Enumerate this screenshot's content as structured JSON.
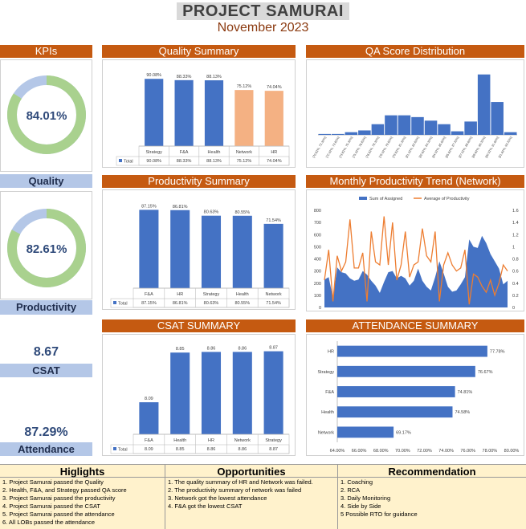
{
  "header": {
    "title": "PROJECT SAMURAI",
    "subtitle": "November 2023"
  },
  "kpis": {
    "section_title": "KPIs",
    "quality": {
      "value": "84.01%",
      "label": "Quality",
      "fraction": 0.8401
    },
    "productivity": {
      "value": "82.61%",
      "label": "Productivity",
      "fraction": 0.8261
    },
    "csat": {
      "value": "8.67",
      "label": "CSAT"
    },
    "attendance": {
      "value": "87.29%",
      "label": "Attendance"
    }
  },
  "colors": {
    "accent": "#c55a11",
    "bar_blue": "#4472c4",
    "bar_peach": "#f4b183",
    "donut_green": "#a9d18e",
    "donut_blue": "#b4c7e7",
    "line_orange": "#ed7d31"
  },
  "chart_data": [
    {
      "id": "quality",
      "type": "bar",
      "title": "Quality Summary",
      "categories": [
        "Strategy",
        "F&A",
        "Health",
        "Network",
        "HR"
      ],
      "series": [
        {
          "name": "Total",
          "values": [
            90.08,
            88.33,
            88.13,
            75.12,
            74.04
          ],
          "labels": [
            "90.08%",
            "88.33%",
            "88.13%",
            "75.12%",
            "74.04%"
          ]
        }
      ],
      "bar_colors": [
        "#4472c4",
        "#4472c4",
        "#4472c4",
        "#f4b183",
        "#f4b183"
      ],
      "ylim": [
        0,
        100
      ]
    },
    {
      "id": "qa",
      "type": "bar",
      "title": "QA Score Distribution",
      "categories": [
        "[70.82%, 72.32%]",
        "[72.32%, 73.82%]",
        "[73.82%, 75.32%]",
        "[75.32%, 76.82%]",
        "[76.82%, 78.32%]",
        "[78.32%, 79.82%]",
        "[79.82%, 81.32%]",
        "[81.32%, 82.82%]",
        "[82.82%, 84.32%]",
        "[84.32%, 85.82%]",
        "[85.82%, 87.32%]",
        "[87.32%, 88.82%]",
        "[88.82%, 90.32%]",
        "[90.32%, 91.82%]",
        "[91.82%, 93.32%]"
      ],
      "values": [
        1,
        1,
        3,
        5,
        12,
        22,
        22,
        20,
        16,
        12,
        4,
        15,
        68,
        37,
        3
      ],
      "ylim": [
        0,
        75
      ]
    },
    {
      "id": "productivity",
      "type": "bar",
      "title": "Productivity Summary",
      "categories": [
        "F&A",
        "HR",
        "Strategy",
        "Health",
        "Network"
      ],
      "series": [
        {
          "name": "Total",
          "values": [
            87.15,
            86.81,
            80.63,
            80.55,
            71.54
          ],
          "labels": [
            "87.15%",
            "86.81%",
            "80.63%",
            "80.55%",
            "71.54%"
          ]
        }
      ],
      "ylim": [
        0,
        100
      ]
    },
    {
      "id": "trend",
      "type": "line",
      "title": "Monthly Productivity Trend (Network)",
      "legend": [
        "Sum of Assigned",
        "Average of Productivity"
      ],
      "left_ticks": [
        "0",
        "100",
        "200",
        "300",
        "400",
        "500",
        "600",
        "700",
        "800"
      ],
      "right_ticks": [
        "0",
        "0.2",
        "0.4",
        "0.6",
        "0.8",
        "1",
        "1.2",
        "1.4",
        "1.6"
      ],
      "ylim": [
        0,
        800
      ],
      "y2lim": [
        0,
        1.6
      ],
      "area_values": [
        230,
        250,
        80,
        330,
        290,
        280,
        240,
        220,
        230,
        300,
        270,
        220,
        180,
        120,
        210,
        290,
        300,
        240,
        260,
        240,
        180,
        220,
        320,
        220,
        170,
        140,
        250,
        380,
        280,
        170,
        130,
        140,
        190,
        250,
        560,
        500,
        490,
        590,
        530,
        440,
        380,
        320,
        190,
        220
      ],
      "line_values": [
        0.45,
        0.95,
        0.1,
        0.85,
        0.6,
        0.75,
        1.45,
        0.65,
        0.65,
        0.9,
        0.1,
        1.25,
        0.75,
        0.7,
        1.5,
        0.7,
        1.4,
        0.45,
        0.7,
        1.25,
        0.5,
        0.7,
        0.75,
        1.3,
        0.85,
        0.75,
        1.25,
        0.1,
        0.7,
        0.9,
        0.7,
        0.6,
        0.65,
        0.95,
        0.05,
        0.55,
        0.5,
        0.35,
        0.25,
        0.45,
        0.2,
        0.4,
        0.7,
        0.6
      ]
    },
    {
      "id": "csat",
      "type": "bar",
      "title": "CSAT SUMMARY",
      "categories": [
        "F&A",
        "Health",
        "HR",
        "Network",
        "Strategy"
      ],
      "series": [
        {
          "name": "Total",
          "values": [
            8.09,
            8.85,
            8.86,
            8.86,
            8.87
          ],
          "labels": [
            "8.09",
            "8.85",
            "8.86",
            "8.86",
            "8.87"
          ]
        }
      ],
      "ylim": [
        7.6,
        9.0
      ]
    },
    {
      "id": "attendance",
      "type": "bar",
      "orientation": "horizontal",
      "title": "ATTENDANCE SUMMARY",
      "categories": [
        "HR",
        "Strategy",
        "F&A",
        "Health",
        "Network"
      ],
      "values": [
        77.78,
        76.67,
        74.81,
        74.58,
        69.17
      ],
      "labels": [
        "77.78%",
        "76.67%",
        "74.81%",
        "74.58%",
        "69.17%"
      ],
      "xticks": [
        "64.00%",
        "66.00%",
        "68.00%",
        "70.00%",
        "72.00%",
        "74.00%",
        "76.00%",
        "78.00%",
        "80.00%"
      ],
      "xlim": [
        64,
        80
      ]
    }
  ],
  "bottom": {
    "highlights": {
      "title": "Higlights",
      "items": [
        "1. Project Samurai passed the Quality",
        "2. Health, F&A, and Strategy passed QA score",
        "3. Project Samurai passed the productivity",
        "4. Project Samurai passed the CSAT",
        "5. Project Samurai passed the attendance",
        "6. All LOBs passed the attendance"
      ]
    },
    "opportunities": {
      "title": "Opportunities",
      "items": [
        "1. The quality summary of HR and Network was failed.",
        "2. The productivity summary of network was failed",
        "3. Network got the lowest attendance",
        "4. F&A got the lowest CSAT"
      ]
    },
    "recommendation": {
      "title": "Recommendation",
      "items": [
        "1. Coaching",
        "2. RCA",
        "3. Daily Monitoring",
        "4. Side by Side",
        "5 Possible RTO for guidance"
      ]
    }
  }
}
